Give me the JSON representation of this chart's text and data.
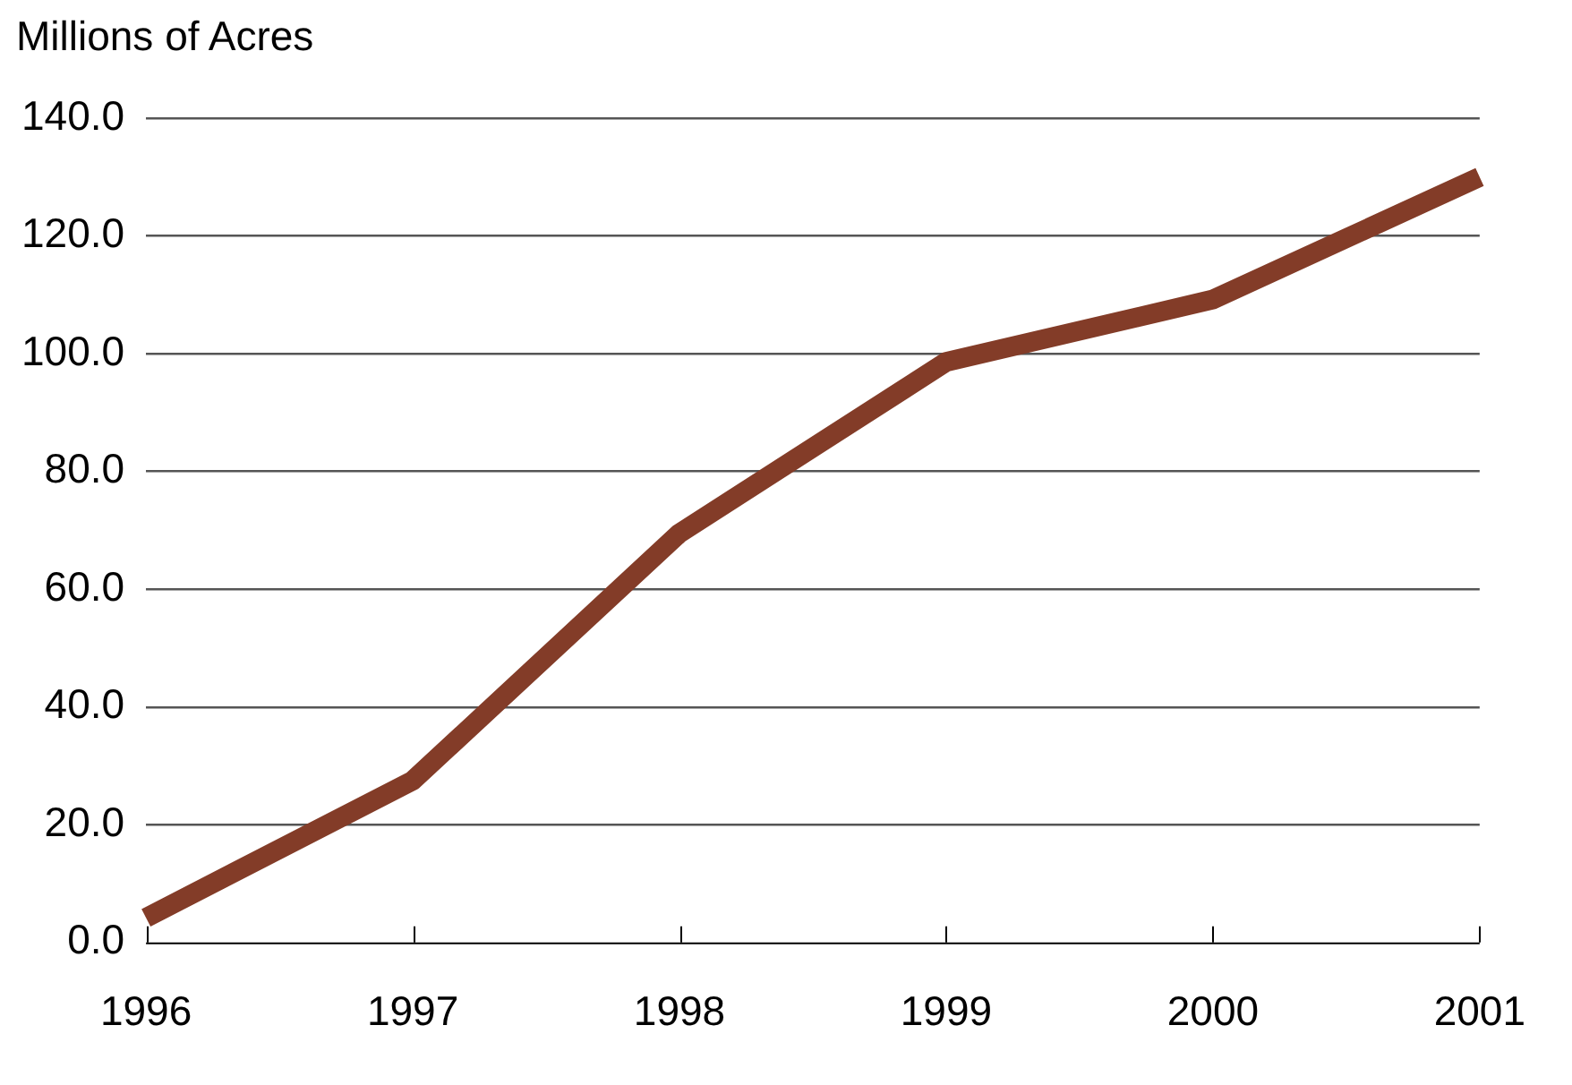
{
  "chart_data": {
    "type": "line",
    "ylabel": "Millions of Acres",
    "categories": [
      "1996",
      "1997",
      "1998",
      "1999",
      "2000",
      "2001"
    ],
    "series": [
      {
        "color": "#833c28",
        "values": [
          4.2,
          27.5,
          69.5,
          98.6,
          109.2,
          130.0
        ]
      }
    ],
    "ylim": [
      0,
      140
    ],
    "yticks": [
      {
        "value": 0,
        "label": "0.0"
      },
      {
        "value": 20,
        "label": "20.0"
      },
      {
        "value": 40,
        "label": "40.0"
      },
      {
        "value": 60,
        "label": "60.0"
      },
      {
        "value": 80,
        "label": "80.0"
      },
      {
        "value": 100,
        "label": "100.0"
      },
      {
        "value": 120,
        "label": "120.0"
      },
      {
        "value": 140,
        "label": "140.0"
      }
    ],
    "grid": "y",
    "legend": false,
    "marker": "none",
    "line_style": "solid"
  }
}
